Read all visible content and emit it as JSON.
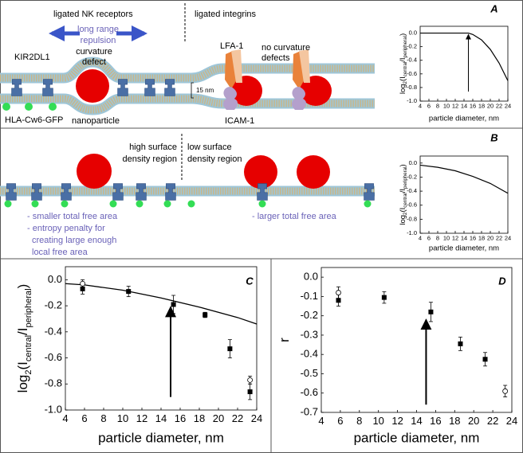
{
  "diagram": {
    "A": {
      "left_title": "ligated NK receptors",
      "right_title": "ligated integrins",
      "repulsion": [
        "long range",
        "repulsion"
      ],
      "defect": [
        "curvature",
        "defect"
      ],
      "receptor": "KIR2DL1",
      "ligand": "HLA-Cw6-GFP",
      "particle": "nanoparticle",
      "integrin": "LFA-1",
      "no_defect": [
        "no curvature",
        "defects"
      ],
      "icam": "ICAM-1",
      "scale": "15 nm"
    },
    "B": {
      "left_title": [
        "high surface",
        "density region"
      ],
      "right_title": [
        "low surface",
        "density region"
      ],
      "left_notes": [
        "- smaller total free area",
        "- entropy penalty for",
        "creating large enough",
        "local free area"
      ],
      "right_notes": [
        "- larger total free area"
      ]
    }
  },
  "chart_data": [
    {
      "type": "line",
      "label": "A",
      "color": "#000000",
      "x": [
        4,
        8,
        12,
        14,
        15,
        16,
        18,
        20,
        22,
        24
      ],
      "values": [
        0,
        0,
        0,
        0,
        0,
        -0.02,
        -0.1,
        -0.24,
        -0.44,
        -0.7
      ],
      "xlabel": "particle diameter, nm",
      "ylabel": [
        "log",
        "2",
        "(I",
        "central",
        "/I",
        "peripheral",
        ")"
      ],
      "xlim": [
        4,
        24
      ],
      "xticks": [
        4,
        6,
        8,
        10,
        12,
        14,
        16,
        18,
        20,
        22,
        24
      ],
      "ylim": [
        -1,
        0.1
      ],
      "yticks": [
        {
          "value": 0,
          "label": "0.0"
        },
        -0.2,
        -0.4,
        -0.6,
        -0.8,
        {
          "value": -1,
          "label": "-1.0"
        }
      ],
      "arrow": {
        "x": 15,
        "y_from": -0.86,
        "y_to": -0.02
      }
    },
    {
      "type": "line",
      "label": "B",
      "color": "#000000",
      "x": [
        4,
        8,
        12,
        16,
        20,
        24
      ],
      "values": [
        -0.03,
        -0.06,
        -0.11,
        -0.19,
        -0.29,
        -0.43
      ],
      "xlabel": "particle diameter, nm",
      "ylabel": [
        "log",
        "2",
        "(I",
        "central",
        "/I",
        "peripheral",
        ")"
      ],
      "xlim": [
        4,
        24
      ],
      "xticks": [
        4,
        6,
        8,
        10,
        12,
        14,
        16,
        18,
        20,
        22,
        24
      ],
      "ylim": [
        -1,
        0.1
      ],
      "yticks": [
        {
          "value": 0,
          "label": "0.0"
        },
        -0.2,
        -0.4,
        -0.6,
        -0.8,
        {
          "value": -1,
          "label": "-1.0"
        }
      ]
    },
    {
      "type": "scatter",
      "label": "C",
      "color": "#000000",
      "series": [
        {
          "marker": "square",
          "x": [
            5.8,
            10.6,
            15.3,
            18.6,
            21.2,
            23.3
          ],
          "values": [
            -0.07,
            -0.09,
            -0.19,
            -0.27,
            -0.53,
            -0.86
          ],
          "errors": [
            0.04,
            0.04,
            0.07,
            0.02,
            0.07,
            0.06
          ]
        },
        {
          "marker": "circle",
          "x": [
            5.8,
            23.3
          ],
          "values": [
            -0.03,
            -0.77
          ],
          "errors": [
            0.03,
            0.03
          ]
        }
      ],
      "curve": {
        "x": [
          4,
          6,
          10,
          14,
          18,
          22,
          24
        ],
        "values": [
          -0.03,
          -0.04,
          -0.08,
          -0.14,
          -0.21,
          -0.29,
          -0.34
        ]
      },
      "xlabel": "particle diameter, nm",
      "ylabel": [
        "log",
        "2",
        "(I",
        "central",
        "/I",
        "peripheral",
        ")"
      ],
      "xlim": [
        4,
        24
      ],
      "xticks": [
        4,
        6,
        8,
        10,
        12,
        14,
        16,
        18,
        20,
        22,
        24
      ],
      "ylim": [
        -1,
        0.1
      ],
      "yticks": [
        {
          "value": 0,
          "label": "0.0"
        },
        -0.2,
        -0.4,
        -0.6,
        -0.8,
        {
          "value": -1,
          "label": "-1.0"
        }
      ],
      "arrow": {
        "x": 15,
        "y_from": -0.9,
        "y_to": -0.21
      }
    },
    {
      "type": "scatter",
      "label": "D",
      "color": "#000000",
      "series": [
        {
          "marker": "square",
          "x": [
            5.8,
            10.6,
            15.5,
            18.6,
            21.2
          ],
          "values": [
            -0.12,
            -0.105,
            -0.18,
            -0.345,
            -0.425
          ],
          "errors": [
            0.03,
            0.03,
            0.05,
            0.035,
            0.035
          ]
        },
        {
          "marker": "circle",
          "x": [
            5.8,
            23.3
          ],
          "values": [
            -0.08,
            -0.59
          ],
          "errors": [
            0.03,
            0.03
          ]
        }
      ],
      "xlabel": "particle diameter, nm",
      "ylabel": [
        "r"
      ],
      "xlim": [
        4,
        24
      ],
      "xticks": [
        4,
        6,
        8,
        10,
        12,
        14,
        16,
        18,
        20,
        22,
        24
      ],
      "ylim": [
        -0.7,
        0.05
      ],
      "yticks": [
        {
          "value": 0,
          "label": "0.0"
        },
        -0.1,
        -0.2,
        -0.3,
        -0.4,
        -0.5,
        -0.6,
        -0.7
      ],
      "arrow": {
        "x": 15,
        "y_from": -0.66,
        "y_to": -0.22
      }
    }
  ]
}
